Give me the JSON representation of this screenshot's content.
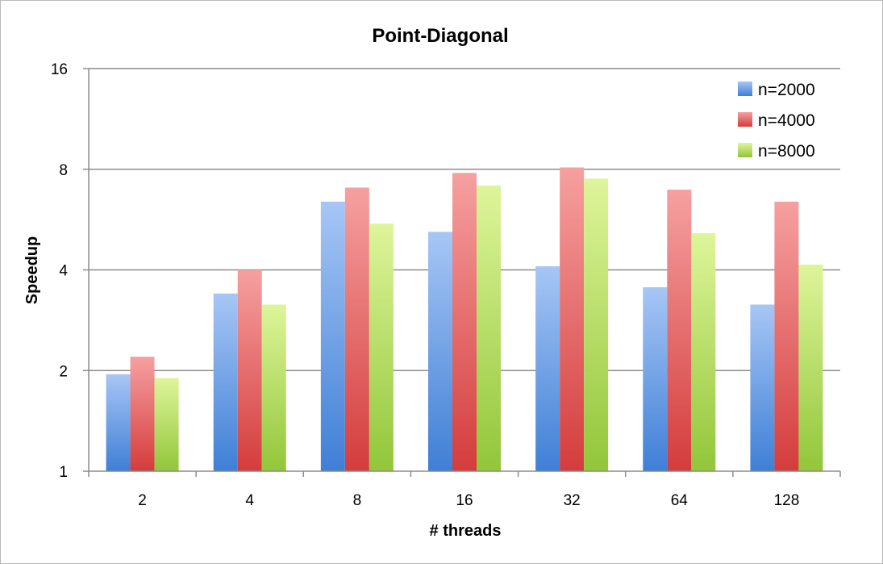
{
  "chart_data": {
    "type": "bar",
    "title": "Point-Diagonal",
    "xlabel": "# threads",
    "ylabel": "Speedup",
    "yscale": "log2",
    "ylim": [
      1,
      16
    ],
    "yticks": [
      "1",
      "2",
      "4",
      "8",
      "16"
    ],
    "grid": true,
    "legend_position": "top-right",
    "categories": [
      "2",
      "4",
      "8",
      "16",
      "32",
      "64",
      "128"
    ],
    "series": [
      {
        "name": "n=2000",
        "color": "#4f81bd",
        "values": [
          1.95,
          3.4,
          6.4,
          5.2,
          4.1,
          3.55,
          3.15
        ]
      },
      {
        "name": "n=4000",
        "color": "#c0504d",
        "values": [
          2.2,
          4.0,
          7.05,
          7.8,
          8.1,
          6.95,
          6.4
        ]
      },
      {
        "name": "n=8000",
        "color": "#9bbb59",
        "values": [
          1.9,
          3.15,
          5.5,
          7.15,
          7.5,
          5.15,
          4.15
        ]
      }
    ]
  }
}
